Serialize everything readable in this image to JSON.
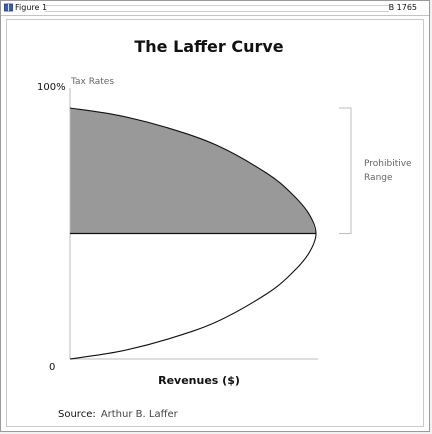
{
  "window": {
    "title": "Figure 1",
    "doc_id": "B 1765",
    "icon": "book-icon"
  },
  "chart_data": {
    "type": "area",
    "title": "The Laffer Curve",
    "xlabel": "Revenues ($)",
    "ylabel": "Tax Rates",
    "y_tick_labels": [
      "100%",
      "0"
    ],
    "ylim": [
      0,
      100
    ],
    "xlim": [
      0,
      100
    ],
    "curve": {
      "x": [
        0,
        20,
        40,
        60,
        80,
        90,
        97,
        100,
        97,
        90,
        80,
        60,
        40,
        20,
        0
      ],
      "y": [
        0,
        3,
        8,
        15,
        26,
        34,
        42,
        50,
        58,
        66,
        74,
        85,
        92,
        97,
        100
      ]
    },
    "shaded_region": {
      "from_y": 50,
      "to_y": 100,
      "color": "#999999"
    },
    "annotation": {
      "text_lines": [
        "Prohibitive",
        "Range"
      ],
      "from_y": 50,
      "to_y": 100
    },
    "source_label": "Source:",
    "source_value": "Arthur B. Laffer",
    "grid": false,
    "legend": "none"
  }
}
